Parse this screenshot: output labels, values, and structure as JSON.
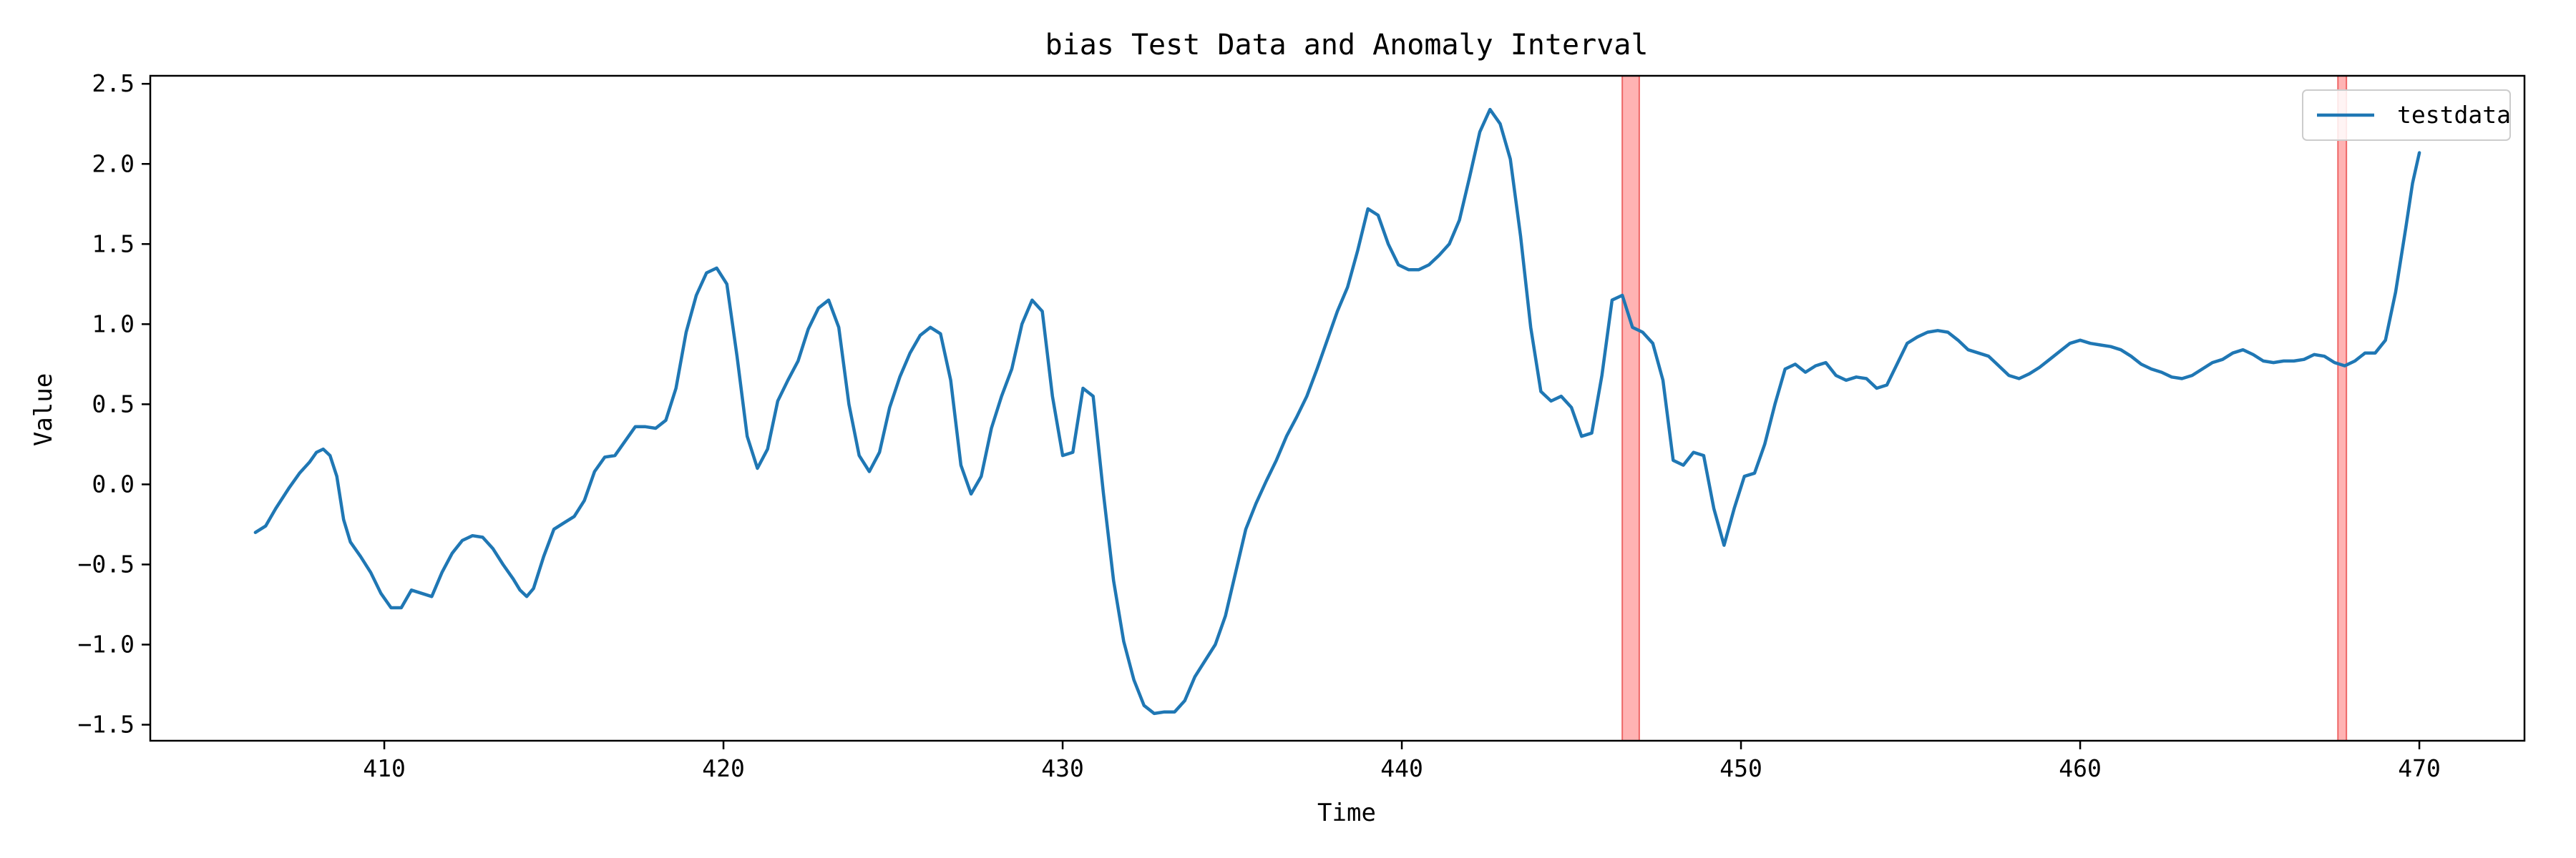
{
  "chart_data": {
    "type": "line",
    "title": "bias Test Data and Anomaly Interval",
    "xlabel": "Time",
    "ylabel": "Value",
    "xlim": [
      403.1,
      473.1
    ],
    "ylim": [
      -1.6,
      2.55
    ],
    "xticks": [
      410,
      420,
      430,
      440,
      450,
      460,
      470
    ],
    "yticks": [
      -1.5,
      -1.0,
      -0.5,
      0.0,
      0.5,
      1.0,
      1.5,
      2.0,
      2.5
    ],
    "ytick_labels": [
      "−1.5",
      "−1.0",
      "−0.5",
      "0.0",
      "0.5",
      "1.0",
      "1.5",
      "2.0",
      "2.5"
    ],
    "grid": false,
    "legend_position": "top-right",
    "colors": {
      "line": "#1f77b4",
      "anomaly": "#ff9999",
      "anomaly_edge": "#ee6666"
    },
    "anomaly_intervals": [
      [
        446.5,
        447.0
      ],
      [
        467.6,
        467.85
      ]
    ],
    "series": [
      {
        "name": "testdata",
        "points": [
          [
            406.2,
            -0.3
          ],
          [
            406.5,
            -0.26
          ],
          [
            406.8,
            -0.15
          ],
          [
            407.2,
            -0.02
          ],
          [
            407.5,
            0.07
          ],
          [
            407.8,
            0.14
          ],
          [
            408.0,
            0.2
          ],
          [
            408.2,
            0.22
          ],
          [
            408.4,
            0.18
          ],
          [
            408.6,
            0.05
          ],
          [
            408.8,
            -0.22
          ],
          [
            409.0,
            -0.36
          ],
          [
            409.3,
            -0.45
          ],
          [
            409.6,
            -0.55
          ],
          [
            409.9,
            -0.68
          ],
          [
            410.2,
            -0.77
          ],
          [
            410.5,
            -0.77
          ],
          [
            410.8,
            -0.66
          ],
          [
            411.1,
            -0.68
          ],
          [
            411.4,
            -0.7
          ],
          [
            411.7,
            -0.55
          ],
          [
            412.0,
            -0.43
          ],
          [
            412.3,
            -0.35
          ],
          [
            412.6,
            -0.32
          ],
          [
            412.9,
            -0.33
          ],
          [
            413.2,
            -0.4
          ],
          [
            413.5,
            -0.5
          ],
          [
            413.8,
            -0.59
          ],
          [
            414.0,
            -0.66
          ],
          [
            414.2,
            -0.7
          ],
          [
            414.4,
            -0.65
          ],
          [
            414.7,
            -0.45
          ],
          [
            415.0,
            -0.28
          ],
          [
            415.3,
            -0.24
          ],
          [
            415.6,
            -0.2
          ],
          [
            415.9,
            -0.1
          ],
          [
            416.2,
            0.08
          ],
          [
            416.5,
            0.17
          ],
          [
            416.8,
            0.18
          ],
          [
            417.1,
            0.27
          ],
          [
            417.4,
            0.36
          ],
          [
            417.7,
            0.36
          ],
          [
            418.0,
            0.35
          ],
          [
            418.3,
            0.4
          ],
          [
            418.6,
            0.6
          ],
          [
            418.9,
            0.95
          ],
          [
            419.2,
            1.18
          ],
          [
            419.5,
            1.32
          ],
          [
            419.8,
            1.35
          ],
          [
            420.1,
            1.25
          ],
          [
            420.4,
            0.8
          ],
          [
            420.7,
            0.3
          ],
          [
            421.0,
            0.1
          ],
          [
            421.3,
            0.22
          ],
          [
            421.6,
            0.52
          ],
          [
            421.9,
            0.65
          ],
          [
            422.2,
            0.77
          ],
          [
            422.5,
            0.97
          ],
          [
            422.8,
            1.1
          ],
          [
            423.1,
            1.15
          ],
          [
            423.4,
            0.98
          ],
          [
            423.7,
            0.5
          ],
          [
            424.0,
            0.18
          ],
          [
            424.3,
            0.08
          ],
          [
            424.6,
            0.2
          ],
          [
            424.9,
            0.48
          ],
          [
            425.2,
            0.67
          ],
          [
            425.5,
            0.82
          ],
          [
            425.8,
            0.93
          ],
          [
            426.1,
            0.98
          ],
          [
            426.4,
            0.94
          ],
          [
            426.7,
            0.65
          ],
          [
            427.0,
            0.12
          ],
          [
            427.3,
            -0.06
          ],
          [
            427.6,
            0.05
          ],
          [
            427.9,
            0.35
          ],
          [
            428.2,
            0.55
          ],
          [
            428.5,
            0.72
          ],
          [
            428.8,
            1.0
          ],
          [
            429.1,
            1.15
          ],
          [
            429.4,
            1.08
          ],
          [
            429.7,
            0.55
          ],
          [
            430.0,
            0.18
          ],
          [
            430.3,
            0.2
          ],
          [
            430.6,
            0.6
          ],
          [
            430.9,
            0.55
          ],
          [
            431.2,
            -0.05
          ],
          [
            431.5,
            -0.6
          ],
          [
            431.8,
            -0.98
          ],
          [
            432.1,
            -1.22
          ],
          [
            432.4,
            -1.38
          ],
          [
            432.7,
            -1.43
          ],
          [
            433.0,
            -1.42
          ],
          [
            433.3,
            -1.42
          ],
          [
            433.6,
            -1.35
          ],
          [
            433.9,
            -1.2
          ],
          [
            434.2,
            -1.1
          ],
          [
            434.5,
            -1.0
          ],
          [
            434.8,
            -0.82
          ],
          [
            435.1,
            -0.55
          ],
          [
            435.4,
            -0.28
          ],
          [
            435.7,
            -0.12
          ],
          [
            436.0,
            0.02
          ],
          [
            436.3,
            0.15
          ],
          [
            436.6,
            0.3
          ],
          [
            436.9,
            0.42
          ],
          [
            437.2,
            0.55
          ],
          [
            437.5,
            0.72
          ],
          [
            437.8,
            0.9
          ],
          [
            438.1,
            1.08
          ],
          [
            438.4,
            1.23
          ],
          [
            438.7,
            1.46
          ],
          [
            439.0,
            1.72
          ],
          [
            439.3,
            1.68
          ],
          [
            439.6,
            1.5
          ],
          [
            439.9,
            1.37
          ],
          [
            440.2,
            1.34
          ],
          [
            440.5,
            1.34
          ],
          [
            440.8,
            1.37
          ],
          [
            441.1,
            1.43
          ],
          [
            441.4,
            1.5
          ],
          [
            441.7,
            1.65
          ],
          [
            442.0,
            1.92
          ],
          [
            442.3,
            2.2
          ],
          [
            442.6,
            2.34
          ],
          [
            442.9,
            2.25
          ],
          [
            443.2,
            2.03
          ],
          [
            443.5,
            1.55
          ],
          [
            443.8,
            0.98
          ],
          [
            444.1,
            0.58
          ],
          [
            444.4,
            0.52
          ],
          [
            444.7,
            0.55
          ],
          [
            445.0,
            0.48
          ],
          [
            445.3,
            0.3
          ],
          [
            445.6,
            0.32
          ],
          [
            445.9,
            0.68
          ],
          [
            446.2,
            1.15
          ],
          [
            446.5,
            1.18
          ],
          [
            446.8,
            0.98
          ],
          [
            447.1,
            0.95
          ],
          [
            447.4,
            0.88
          ],
          [
            447.7,
            0.65
          ],
          [
            448.0,
            0.15
          ],
          [
            448.3,
            0.12
          ],
          [
            448.6,
            0.2
          ],
          [
            448.9,
            0.18
          ],
          [
            449.2,
            -0.15
          ],
          [
            449.5,
            -0.38
          ],
          [
            449.8,
            -0.15
          ],
          [
            450.1,
            0.05
          ],
          [
            450.4,
            0.07
          ],
          [
            450.7,
            0.25
          ],
          [
            451.0,
            0.5
          ],
          [
            451.3,
            0.72
          ],
          [
            451.6,
            0.75
          ],
          [
            451.9,
            0.7
          ],
          [
            452.2,
            0.74
          ],
          [
            452.5,
            0.76
          ],
          [
            452.8,
            0.68
          ],
          [
            453.1,
            0.65
          ],
          [
            453.4,
            0.67
          ],
          [
            453.7,
            0.66
          ],
          [
            454.0,
            0.6
          ],
          [
            454.3,
            0.62
          ],
          [
            454.6,
            0.75
          ],
          [
            454.9,
            0.88
          ],
          [
            455.2,
            0.92
          ],
          [
            455.5,
            0.95
          ],
          [
            455.8,
            0.96
          ],
          [
            456.1,
            0.95
          ],
          [
            456.4,
            0.9
          ],
          [
            456.7,
            0.84
          ],
          [
            457.0,
            0.82
          ],
          [
            457.3,
            0.8
          ],
          [
            457.6,
            0.74
          ],
          [
            457.9,
            0.68
          ],
          [
            458.2,
            0.66
          ],
          [
            458.5,
            0.69
          ],
          [
            458.8,
            0.73
          ],
          [
            459.1,
            0.78
          ],
          [
            459.4,
            0.83
          ],
          [
            459.7,
            0.88
          ],
          [
            460.0,
            0.9
          ],
          [
            460.3,
            0.88
          ],
          [
            460.6,
            0.87
          ],
          [
            460.9,
            0.86
          ],
          [
            461.2,
            0.84
          ],
          [
            461.5,
            0.8
          ],
          [
            461.8,
            0.75
          ],
          [
            462.1,
            0.72
          ],
          [
            462.4,
            0.7
          ],
          [
            462.7,
            0.67
          ],
          [
            463.0,
            0.66
          ],
          [
            463.3,
            0.68
          ],
          [
            463.6,
            0.72
          ],
          [
            463.9,
            0.76
          ],
          [
            464.2,
            0.78
          ],
          [
            464.5,
            0.82
          ],
          [
            464.8,
            0.84
          ],
          [
            465.1,
            0.81
          ],
          [
            465.4,
            0.77
          ],
          [
            465.7,
            0.76
          ],
          [
            466.0,
            0.77
          ],
          [
            466.3,
            0.77
          ],
          [
            466.6,
            0.78
          ],
          [
            466.9,
            0.81
          ],
          [
            467.2,
            0.8
          ],
          [
            467.5,
            0.76
          ],
          [
            467.8,
            0.74
          ],
          [
            468.1,
            0.77
          ],
          [
            468.4,
            0.82
          ],
          [
            468.7,
            0.82
          ],
          [
            469.0,
            0.9
          ],
          [
            469.3,
            1.2
          ],
          [
            469.6,
            1.6
          ],
          [
            469.8,
            1.88
          ],
          [
            470.0,
            2.07
          ]
        ]
      }
    ]
  }
}
